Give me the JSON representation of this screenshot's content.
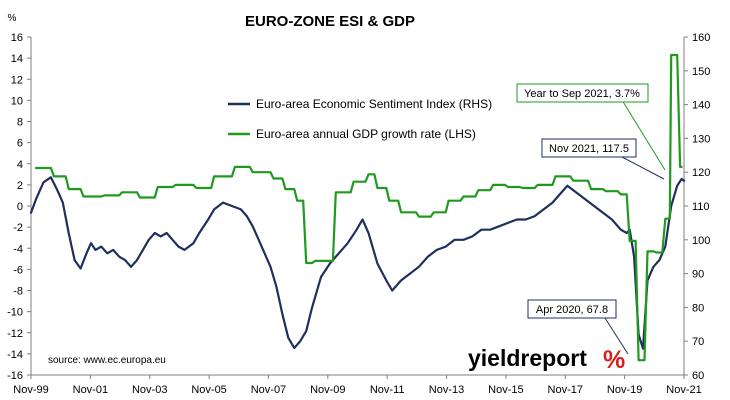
{
  "chart_data": {
    "type": "line",
    "title": "EURO-ZONE ESI & GDP",
    "y_left": {
      "unit": "%",
      "lim": [
        -16,
        16
      ],
      "ticks": [
        16,
        14,
        12,
        10,
        8,
        6,
        4,
        2,
        0,
        -2,
        -4,
        -6,
        -8,
        -10,
        -12,
        -14,
        -16
      ]
    },
    "y_right": {
      "lim": [
        60,
        160
      ],
      "ticks": [
        160,
        150,
        140,
        130,
        120,
        110,
        100,
        90,
        80,
        70,
        60
      ]
    },
    "x_ticks": [
      "Nov-99",
      "Nov-01",
      "Nov-03",
      "Nov-05",
      "Nov-07",
      "Nov-09",
      "Nov-11",
      "Nov-13",
      "Nov-15",
      "Nov-17",
      "Nov-19",
      "Nov-21"
    ],
    "grid": false,
    "legend": [
      {
        "label": "Euro-area Economic Sentiment Index (RHS)",
        "color": "#1f2f5e"
      },
      {
        "label": "Euro-area annual GDP growth rate (LHS)",
        "color": "#1f9a1f"
      }
    ],
    "series": [
      {
        "name": "Euro-area Economic Sentiment Index (RHS)",
        "axis": "right",
        "color": "#1f2f5e",
        "x": [
          1999.83,
          2000.0,
          2000.25,
          2000.5,
          2000.7,
          2000.9,
          2001.1,
          2001.3,
          2001.5,
          2001.7,
          2001.85,
          2002.0,
          2002.2,
          2002.4,
          2002.6,
          2002.8,
          2003.0,
          2003.2,
          2003.4,
          2003.6,
          2003.8,
          2004.0,
          2004.2,
          2004.4,
          2004.6,
          2004.8,
          2005.0,
          2005.3,
          2005.5,
          2005.8,
          2006.0,
          2006.3,
          2006.6,
          2006.9,
          2007.1,
          2007.3,
          2007.5,
          2007.7,
          2007.9,
          2008.1,
          2008.3,
          2008.5,
          2008.7,
          2008.9,
          2009.1,
          2009.3,
          2009.6,
          2009.9,
          2010.2,
          2010.5,
          2010.8,
          2011.0,
          2011.2,
          2011.5,
          2011.8,
          2012.0,
          2012.3,
          2012.6,
          2012.9,
          2013.2,
          2013.5,
          2013.8,
          2014.1,
          2014.4,
          2014.7,
          2015.0,
          2015.3,
          2015.6,
          2015.9,
          2016.2,
          2016.5,
          2016.8,
          2017.1,
          2017.4,
          2017.7,
          2017.9,
          2018.2,
          2018.5,
          2018.8,
          2019.1,
          2019.4,
          2019.7,
          2019.9,
          2020.0,
          2020.15,
          2020.3,
          2020.45,
          2020.6,
          2020.8,
          2021.0,
          2021.2,
          2021.4,
          2021.6,
          2021.75,
          2021.83
        ],
        "y": [
          108,
          112,
          117,
          118.5,
          115,
          111,
          102,
          94,
          91.5,
          96,
          99,
          97,
          98,
          96,
          97,
          95,
          94,
          92,
          94,
          97,
          100,
          102,
          101,
          102,
          100,
          98,
          97,
          99,
          102,
          106,
          109,
          111,
          110,
          109,
          107,
          104,
          100,
          96,
          92,
          86,
          78,
          71,
          68,
          70,
          73,
          80,
          89,
          93,
          96,
          99,
          103,
          106,
          102,
          93,
          88,
          85,
          88,
          90,
          92,
          95,
          97,
          98,
          100,
          100,
          101,
          103,
          103,
          104,
          105,
          106,
          106,
          107,
          109,
          111,
          114,
          116,
          114,
          112,
          110,
          108,
          106,
          103,
          102,
          103,
          95,
          72,
          67.8,
          88,
          92,
          94,
          98,
          110,
          116,
          118,
          117.5
        ]
      },
      {
        "name": "Euro-area annual GDP growth rate (LHS)",
        "axis": "left",
        "color": "#1f9a1f",
        "x": [
          2000.0,
          2000.5,
          2000.6,
          2001.0,
          2001.1,
          2001.5,
          2001.6,
          2002.2,
          2002.3,
          2002.8,
          2002.9,
          2003.4,
          2003.5,
          2004.0,
          2004.1,
          2004.6,
          2004.7,
          2005.3,
          2005.4,
          2005.9,
          2006.0,
          2006.6,
          2006.7,
          2007.2,
          2007.3,
          2007.9,
          2008.0,
          2008.3,
          2008.4,
          2008.7,
          2008.8,
          2009.0,
          2009.1,
          2009.3,
          2009.4,
          2010.0,
          2010.1,
          2010.6,
          2010.7,
          2011.1,
          2011.2,
          2011.4,
          2011.5,
          2011.8,
          2011.9,
          2012.2,
          2012.3,
          2012.8,
          2012.9,
          2013.3,
          2013.4,
          2013.8,
          2013.9,
          2014.3,
          2014.4,
          2014.8,
          2014.9,
          2015.3,
          2015.4,
          2015.8,
          2015.9,
          2016.3,
          2016.4,
          2016.8,
          2016.9,
          2017.4,
          2017.5,
          2018.0,
          2018.1,
          2018.6,
          2018.7,
          2019.1,
          2019.2,
          2019.6,
          2019.7,
          2019.9,
          2020.0,
          2020.2,
          2020.3,
          2020.5,
          2020.6,
          2020.8,
          2020.9,
          2021.1,
          2021.2,
          2021.35,
          2021.4,
          2021.6,
          2021.7,
          2021.75
        ],
        "y": [
          3.6,
          3.6,
          2.8,
          2.8,
          1.6,
          1.6,
          0.9,
          0.9,
          1.0,
          1.0,
          1.3,
          1.3,
          0.8,
          0.8,
          1.8,
          1.8,
          2.0,
          2.0,
          1.7,
          1.7,
          2.8,
          2.8,
          3.7,
          3.7,
          3.2,
          3.2,
          2.6,
          2.6,
          1.6,
          1.6,
          0.5,
          0.5,
          -5.4,
          -5.4,
          -5.2,
          -5.2,
          1.3,
          1.3,
          2.3,
          2.3,
          3.0,
          3.0,
          1.7,
          1.7,
          0.5,
          0.5,
          -0.6,
          -0.6,
          -1.0,
          -1.0,
          -0.6,
          -0.6,
          0.5,
          0.5,
          0.9,
          0.9,
          1.5,
          1.5,
          2.0,
          2.0,
          1.8,
          1.8,
          1.7,
          1.7,
          2.0,
          2.0,
          2.8,
          2.8,
          2.4,
          2.4,
          1.6,
          1.6,
          1.4,
          1.4,
          1.1,
          1.1,
          -3.3,
          -3.3,
          -14.6,
          -14.6,
          -4.3,
          -4.3,
          -4.4,
          -4.4,
          -1.2,
          -1.2,
          14.3,
          14.3,
          3.7,
          3.7
        ]
      }
    ],
    "annotations": [
      {
        "text": "Year to Sep 2021, 3.7%",
        "color": "#1f9a1f",
        "target_series": 1,
        "target_index": 89
      },
      {
        "text": "Nov 2021, 117.5",
        "color": "#1f2f5e",
        "target_series": 0,
        "target_index": 94
      },
      {
        "text": "Apr 2020, 67.8",
        "color": "#1f2f5e",
        "target_series": 0,
        "target_index": 86
      }
    ],
    "source": "source: www.ec.europa.eu",
    "watermark": {
      "word": "yieldreport",
      "symbol": "%"
    }
  }
}
